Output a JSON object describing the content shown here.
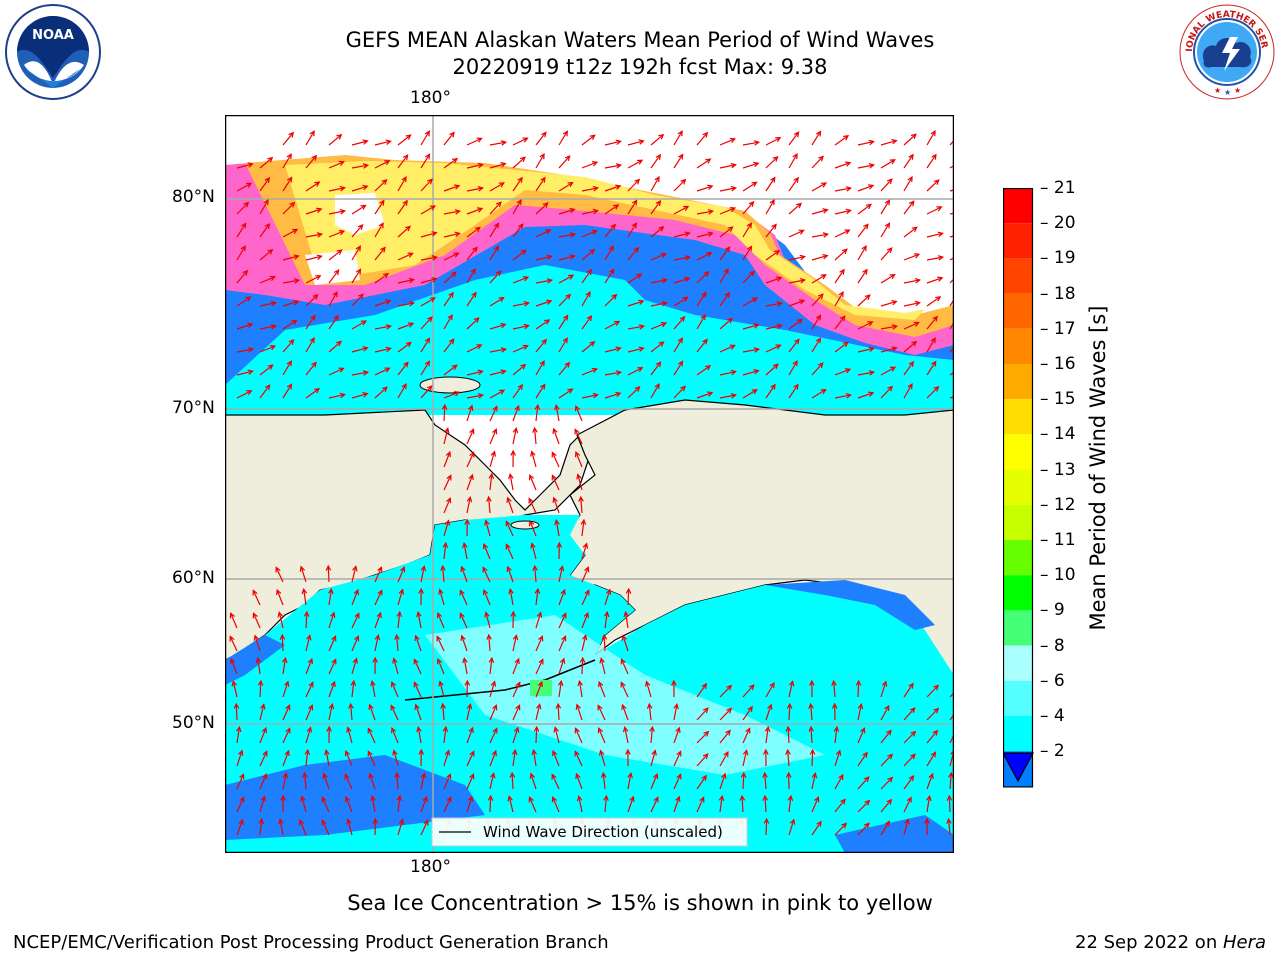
{
  "header": {
    "title_line1": "GEFS MEAN Alaskan Waters Mean Period of Wind Waves",
    "title_line2": "20220919 t12z 192h fcst   Max: 9.38"
  },
  "logos": {
    "noaa_text": "NOAA",
    "noaa_ring": "NATIONAL OCEANIC AND ATMOSPHERIC ADMINISTRATION · U.S. DEPARTMENT OF COMMERCE",
    "nws_ring": "NATIONAL WEATHER SERVICE"
  },
  "map": {
    "top_lon_label": "180°",
    "bottom_lon_label": "180°",
    "lat_labels": [
      "80°N",
      "70°N",
      "60°N",
      "50°N"
    ],
    "legend_label": "Wind Wave Direction (unscaled)",
    "colors": {
      "land": "#efeddc",
      "deep_blue": "#1e7fff",
      "cyan": "#00ffff",
      "light_cyan": "#55ffff",
      "ice_pink": "#ff66cc",
      "ice_orange": "#ffbb44",
      "ice_yellow": "#ffee66",
      "arrow": "#ee0000"
    }
  },
  "colorbar": {
    "label": "Mean Period of Wind Waves [s]",
    "tick_labels": [
      "21",
      "20",
      "19",
      "18",
      "17",
      "16",
      "15",
      "14",
      "13",
      "12",
      "11",
      "10",
      "9",
      "8",
      "6",
      "4",
      "2"
    ],
    "colors": [
      "#ff0000",
      "#ff2000",
      "#ff4400",
      "#ff6600",
      "#ff8800",
      "#ffaa00",
      "#ffdd00",
      "#ffff00",
      "#e6ff00",
      "#c8ff00",
      "#66ff00",
      "#00ff00",
      "#44ff77",
      "#aaffff",
      "#55ffff",
      "#00ffff",
      "#0080ff"
    ],
    "under_color": "#0000ff"
  },
  "footer": {
    "note": "Sea Ice Concentration > 15% is shown in pink to yellow",
    "left": "NCEP/EMC/Verification Post Processing Product Generation Branch",
    "right_prefix": "22 Sep 2022 on ",
    "right_host": "Hera"
  }
}
